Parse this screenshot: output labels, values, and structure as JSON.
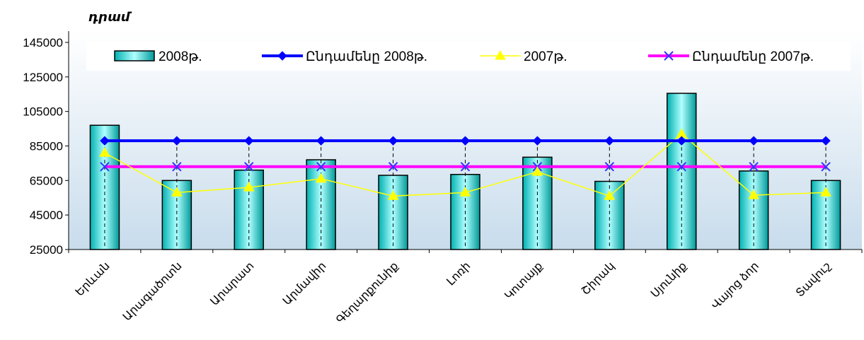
{
  "chart_data": {
    "type": "bar",
    "ylabel": "դրամ",
    "ylim": [
      25000,
      145000
    ],
    "yticks": [
      25000,
      45000,
      65000,
      85000,
      105000,
      125000,
      145000
    ],
    "grid": false,
    "legend_position": "top",
    "categories": [
      "Երևան",
      "Արագածոտն",
      "Արարատ",
      "Արմավիր",
      "Գեղարքունիք",
      "Լոռի",
      "Կոտայք",
      "Շիրակ",
      "Սյունիք",
      "Վայոց ձոր",
      "Տավուշ"
    ],
    "series": [
      {
        "name": "2008թ.",
        "kind": "bar",
        "color": "#00C0C0",
        "values": [
          97000,
          65000,
          71000,
          77000,
          68000,
          68500,
          78500,
          64500,
          115500,
          70500,
          65000
        ]
      },
      {
        "name": "Ընդամենը 2008թ.",
        "kind": "line",
        "marker": "diamond",
        "color": "#0000FF",
        "values": [
          88000,
          88000,
          88000,
          88000,
          88000,
          88000,
          88000,
          88000,
          88000,
          88000,
          88000
        ]
      },
      {
        "name": "2007թ.",
        "kind": "line",
        "marker": "triangle",
        "color": "#FFFF00",
        "values": [
          81000,
          58000,
          61000,
          66000,
          56000,
          58000,
          70000,
          56000,
          92000,
          56500,
          58000
        ]
      },
      {
        "name": "Ընդամենը 2007թ.",
        "kind": "line",
        "marker": "x",
        "color": "#FF00FF",
        "values": [
          73000,
          73000,
          73000,
          73000,
          73000,
          73000,
          73000,
          73000,
          73000,
          73000,
          73000
        ]
      }
    ]
  }
}
